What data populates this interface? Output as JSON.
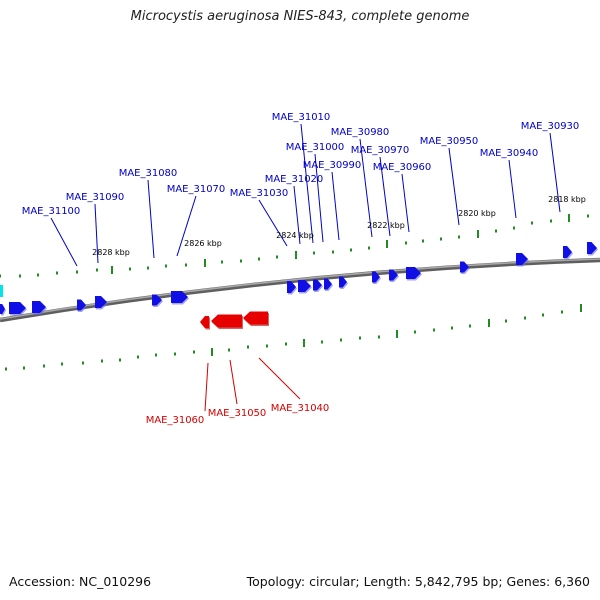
{
  "title": "Microcystis aeruginosa NIES-843, complete genome",
  "footer": {
    "accession": "Accession: NC_010296",
    "summary": "Topology: circular; Length: 5,842,795 bp; Genes: 6,360"
  },
  "colors": {
    "forward_gene": "#1010e6",
    "reverse_gene": "#e60000",
    "forward_label": "#0000c8",
    "reverse_label": "#d40000",
    "tick": "#228b22",
    "backbone": "#808080",
    "partial_gene": "#00e5e5"
  },
  "position_labels": [
    "2828 kbp",
    "2826 kbp",
    "2824 kbp",
    "2822 kbp",
    "2820 kbp",
    "2818 kbp"
  ],
  "forward_genes": [
    "MAE_31100",
    "MAE_31090",
    "MAE_31080",
    "MAE_31070",
    "MAE_31030",
    "MAE_31020",
    "MAE_31010",
    "MAE_31000",
    "MAE_30990",
    "MAE_30980",
    "MAE_30970",
    "MAE_30960",
    "MAE_30950",
    "MAE_30940",
    "MAE_30930"
  ],
  "reverse_genes": [
    "MAE_31060",
    "MAE_31050",
    "MAE_31040"
  ]
}
